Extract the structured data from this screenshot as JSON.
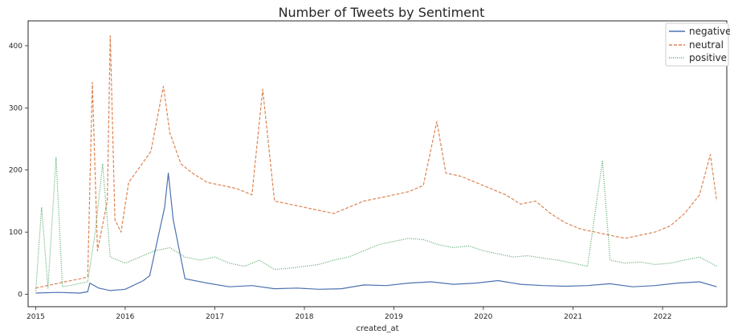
{
  "chart_data": {
    "type": "line",
    "title": "Number of Tweets by Sentiment",
    "xlabel": "created_at",
    "ylabel": "",
    "x_range": [
      "2015-01-01",
      "2022-09-01"
    ],
    "ylim": [
      -20,
      440
    ],
    "x_ticks": [
      "2015",
      "2016",
      "2017",
      "2018",
      "2019",
      "2020",
      "2021",
      "2022"
    ],
    "y_ticks": [
      0,
      100,
      200,
      300,
      400
    ],
    "grid": false,
    "legend_position": "top-right",
    "series": [
      {
        "name": "negative",
        "style": "solid",
        "color": "#4c72b0",
        "points": [
          [
            "2015-01-01",
            2
          ],
          [
            "2015-04-01",
            3
          ],
          [
            "2015-07-01",
            2
          ],
          [
            "2015-08-01",
            4
          ],
          [
            "2015-08-10",
            18
          ],
          [
            "2015-09-15",
            10
          ],
          [
            "2015-11-01",
            6
          ],
          [
            "2016-01-01",
            8
          ],
          [
            "2016-03-15",
            22
          ],
          [
            "2016-04-10",
            30
          ],
          [
            "2016-06-10",
            140
          ],
          [
            "2016-06-25",
            195
          ],
          [
            "2016-07-15",
            120
          ],
          [
            "2016-09-01",
            25
          ],
          [
            "2016-12-01",
            18
          ],
          [
            "2017-03-01",
            12
          ],
          [
            "2017-06-01",
            14
          ],
          [
            "2017-09-01",
            9
          ],
          [
            "2017-12-01",
            10
          ],
          [
            "2018-03-01",
            8
          ],
          [
            "2018-06-01",
            9
          ],
          [
            "2018-09-01",
            15
          ],
          [
            "2018-12-01",
            14
          ],
          [
            "2019-03-01",
            18
          ],
          [
            "2019-06-01",
            20
          ],
          [
            "2019-09-01",
            16
          ],
          [
            "2019-12-01",
            18
          ],
          [
            "2020-03-01",
            22
          ],
          [
            "2020-06-01",
            16
          ],
          [
            "2020-09-01",
            14
          ],
          [
            "2020-12-01",
            13
          ],
          [
            "2021-03-01",
            14
          ],
          [
            "2021-06-01",
            17
          ],
          [
            "2021-09-01",
            12
          ],
          [
            "2021-12-01",
            14
          ],
          [
            "2022-03-01",
            18
          ],
          [
            "2022-06-01",
            20
          ],
          [
            "2022-08-10",
            12
          ]
        ]
      },
      {
        "name": "neutral",
        "style": "dashed",
        "color": "#dd8452",
        "points": [
          [
            "2015-01-01",
            10
          ],
          [
            "2015-03-01",
            15
          ],
          [
            "2015-05-01",
            20
          ],
          [
            "2015-07-01",
            25
          ],
          [
            "2015-08-01",
            28
          ],
          [
            "2015-08-20",
            341
          ],
          [
            "2015-09-10",
            70
          ],
          [
            "2015-10-20",
            150
          ],
          [
            "2015-11-01",
            416
          ],
          [
            "2015-11-20",
            120
          ],
          [
            "2015-12-15",
            100
          ],
          [
            "2016-01-15",
            180
          ],
          [
            "2016-03-01",
            205
          ],
          [
            "2016-04-15",
            230
          ],
          [
            "2016-06-05",
            335
          ],
          [
            "2016-07-01",
            260
          ],
          [
            "2016-08-15",
            210
          ],
          [
            "2016-10-01",
            195
          ],
          [
            "2016-12-01",
            180
          ],
          [
            "2017-02-01",
            175
          ],
          [
            "2017-04-01",
            170
          ],
          [
            "2017-06-01",
            160
          ],
          [
            "2017-07-15",
            330
          ],
          [
            "2017-09-01",
            150
          ],
          [
            "2017-11-01",
            145
          ],
          [
            "2018-01-01",
            140
          ],
          [
            "2018-03-01",
            135
          ],
          [
            "2018-05-01",
            130
          ],
          [
            "2018-07-01",
            140
          ],
          [
            "2018-09-01",
            150
          ],
          [
            "2018-11-01",
            155
          ],
          [
            "2019-01-01",
            160
          ],
          [
            "2019-03-01",
            165
          ],
          [
            "2019-05-01",
            175
          ],
          [
            "2019-06-25",
            278
          ],
          [
            "2019-08-01",
            195
          ],
          [
            "2019-10-01",
            190
          ],
          [
            "2019-12-01",
            180
          ],
          [
            "2020-02-01",
            170
          ],
          [
            "2020-04-01",
            160
          ],
          [
            "2020-06-01",
            145
          ],
          [
            "2020-08-01",
            150
          ],
          [
            "2020-10-01",
            130
          ],
          [
            "2020-12-01",
            115
          ],
          [
            "2021-02-01",
            105
          ],
          [
            "2021-04-01",
            100
          ],
          [
            "2021-06-01",
            95
          ],
          [
            "2021-08-01",
            90
          ],
          [
            "2021-10-01",
            95
          ],
          [
            "2021-12-01",
            100
          ],
          [
            "2022-02-01",
            110
          ],
          [
            "2022-04-01",
            130
          ],
          [
            "2022-06-01",
            160
          ],
          [
            "2022-07-15",
            225
          ],
          [
            "2022-08-10",
            150
          ]
        ]
      },
      {
        "name": "positive",
        "style": "dotted",
        "color": "#55a868",
        "points": [
          [
            "2015-01-01",
            5
          ],
          [
            "2015-01-25",
            140
          ],
          [
            "2015-02-20",
            10
          ],
          [
            "2015-03-25",
            220
          ],
          [
            "2015-04-20",
            12
          ],
          [
            "2015-06-01",
            15
          ],
          [
            "2015-08-01",
            20
          ],
          [
            "2015-09-01",
            100
          ],
          [
            "2015-10-01",
            210
          ],
          [
            "2015-11-01",
            60
          ],
          [
            "2016-01-01",
            50
          ],
          [
            "2016-03-01",
            60
          ],
          [
            "2016-05-01",
            70
          ],
          [
            "2016-07-01",
            75
          ],
          [
            "2016-09-01",
            60
          ],
          [
            "2016-11-01",
            55
          ],
          [
            "2017-01-01",
            60
          ],
          [
            "2017-03-01",
            50
          ],
          [
            "2017-05-01",
            45
          ],
          [
            "2017-07-01",
            55
          ],
          [
            "2017-09-01",
            40
          ],
          [
            "2017-11-01",
            42
          ],
          [
            "2018-01-01",
            45
          ],
          [
            "2018-03-01",
            48
          ],
          [
            "2018-05-01",
            55
          ],
          [
            "2018-07-01",
            60
          ],
          [
            "2018-09-01",
            70
          ],
          [
            "2018-11-01",
            80
          ],
          [
            "2019-01-01",
            85
          ],
          [
            "2019-03-01",
            90
          ],
          [
            "2019-05-01",
            88
          ],
          [
            "2019-07-01",
            80
          ],
          [
            "2019-09-01",
            75
          ],
          [
            "2019-11-01",
            78
          ],
          [
            "2020-01-01",
            70
          ],
          [
            "2020-03-01",
            65
          ],
          [
            "2020-05-01",
            60
          ],
          [
            "2020-07-01",
            62
          ],
          [
            "2020-09-01",
            58
          ],
          [
            "2020-11-01",
            55
          ],
          [
            "2021-01-01",
            50
          ],
          [
            "2021-03-01",
            45
          ],
          [
            "2021-05-01",
            215
          ],
          [
            "2021-06-01",
            55
          ],
          [
            "2021-08-01",
            50
          ],
          [
            "2021-10-01",
            52
          ],
          [
            "2021-12-01",
            48
          ],
          [
            "2022-02-01",
            50
          ],
          [
            "2022-04-01",
            55
          ],
          [
            "2022-06-01",
            60
          ],
          [
            "2022-08-10",
            45
          ]
        ]
      }
    ]
  }
}
